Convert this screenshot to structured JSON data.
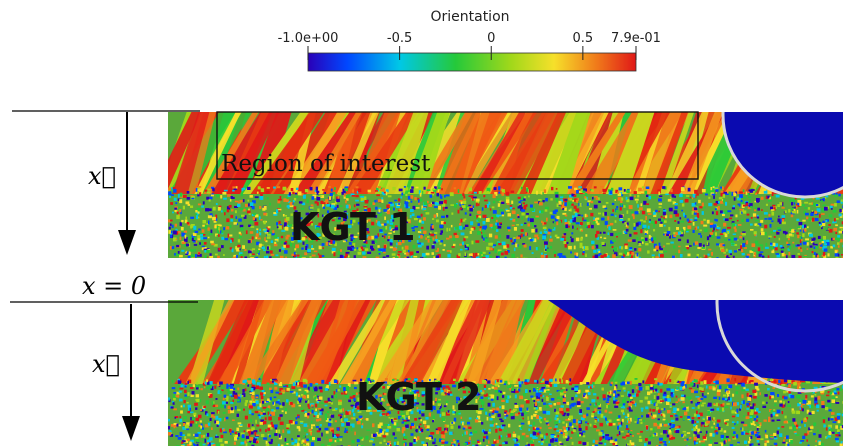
{
  "colorbar": {
    "title": "Orientation",
    "ticks": [
      "-1.0e+00",
      "-0.5",
      "0",
      "0.5",
      "7.9e-01"
    ],
    "tick_values": [
      -1.0,
      -0.5,
      0,
      0.5,
      0.79
    ],
    "range": [
      -1.0,
      0.79
    ],
    "colors": [
      "#2a00b8",
      "#0048ff",
      "#00c8e6",
      "#25c93a",
      "#a2d81a",
      "#f6e02a",
      "#f07a1a",
      "#e01818"
    ]
  },
  "axis": {
    "x_vector": "x⃗",
    "origin_label": "x = 0"
  },
  "panels": [
    {
      "label": "KGT 1",
      "region_label": "Region of interest"
    },
    {
      "label": "KGT 2"
    }
  ],
  "colors": {
    "melt_pool": "#0a0ab0",
    "powder_bg": "#5aa83a",
    "outline": "#d8d8d8"
  }
}
